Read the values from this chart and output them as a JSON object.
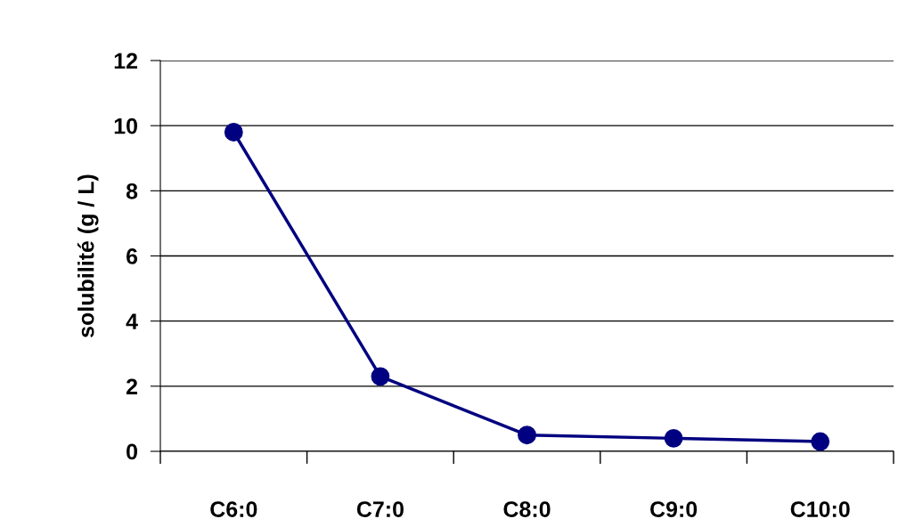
{
  "chart_data": {
    "type": "line",
    "ylabel": "solubilité (g / L)",
    "categories": [
      "C6:0",
      "C7:0",
      "C8:0",
      "C9:0",
      "C10:0"
    ],
    "series": [
      {
        "color": "#000080",
        "values": [
          9.8,
          2.3,
          0.5,
          0.4,
          0.3
        ]
      }
    ],
    "ylim": [
      0,
      12
    ],
    "yticks": [
      0,
      2,
      4,
      6,
      8,
      10,
      12
    ],
    "grid": "y",
    "marker": "circle",
    "line_style": "solid"
  }
}
